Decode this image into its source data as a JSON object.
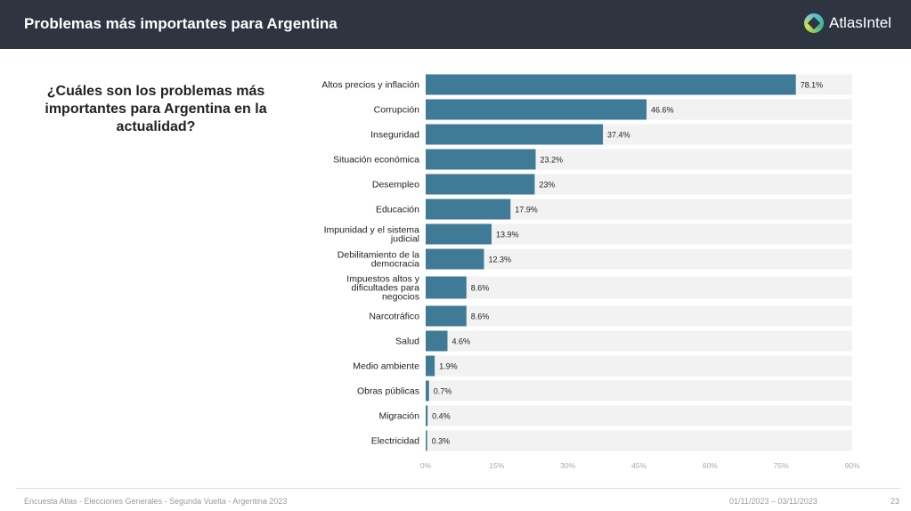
{
  "header": {
    "title": "Problemas más importantes para Argentina",
    "logo_text": "AtlasIntel"
  },
  "question": "¿Cuáles son los problemas más importantes para Argentina en la actualidad?",
  "chart_data": {
    "type": "bar",
    "orientation": "horizontal",
    "categories": [
      "Altos precios y inflación",
      "Corrupción",
      "Inseguridad",
      "Situación económica",
      "Desempleo",
      "Educación",
      "Impunidad y el sistema judicial",
      "Debilitamiento de la democracia",
      "Impuestos altos y dificultades para negocios",
      "Narcotráfico",
      "Salud",
      "Medio ambiente",
      "Obras públicas",
      "Migración",
      "Electricidad"
    ],
    "values": [
      78.1,
      46.6,
      37.4,
      23.2,
      23,
      17.9,
      13.9,
      12.3,
      8.6,
      8.6,
      4.6,
      1.9,
      0.7,
      0.4,
      0.3
    ],
    "data_labels": [
      "78.1%",
      "46.6%",
      "37.4%",
      "23.2%",
      "23%",
      "17.9%",
      "13.9%",
      "12.3%",
      "8.6%",
      "8.6%",
      "4.6%",
      "1.9%",
      "0.7%",
      "0.4%",
      "0.3%"
    ],
    "xlim": [
      0,
      90
    ],
    "x_ticks": [
      "0%",
      "15%",
      "30%",
      "45%",
      "60%",
      "75%",
      "90%"
    ],
    "colors": {
      "bar": "#3f7a96",
      "track": "#f2f2f2"
    },
    "grid": false
  },
  "footer": {
    "source": "Encuesta Atlas - Elecciones Generales - Segunda Vuelta - Argentina 2023",
    "dates": "01/11/2023 – 03/11/2023",
    "page": "23"
  }
}
